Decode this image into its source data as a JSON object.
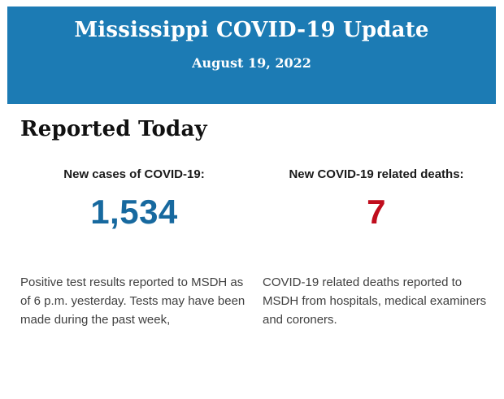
{
  "header": {
    "title": "Mississippi COVID-19 Update",
    "date": "August 19, 2022",
    "background_color": "#1c7bb4",
    "text_color": "#ffffff"
  },
  "section": {
    "title": "Reported Today"
  },
  "stats": [
    {
      "label": "New cases of COVID-19:",
      "value": "1,534",
      "value_color": "#17699f",
      "description": "Positive test results reported to MSDH as of 6 p.m. yesterday. Tests may have been made during the past week,"
    },
    {
      "label": "New COVID-19 related deaths:",
      "value": "7",
      "value_color": "#c00d1d",
      "description": "COVID-19 related deaths reported to MSDH from hospitals, medical examiners and coroners."
    }
  ]
}
